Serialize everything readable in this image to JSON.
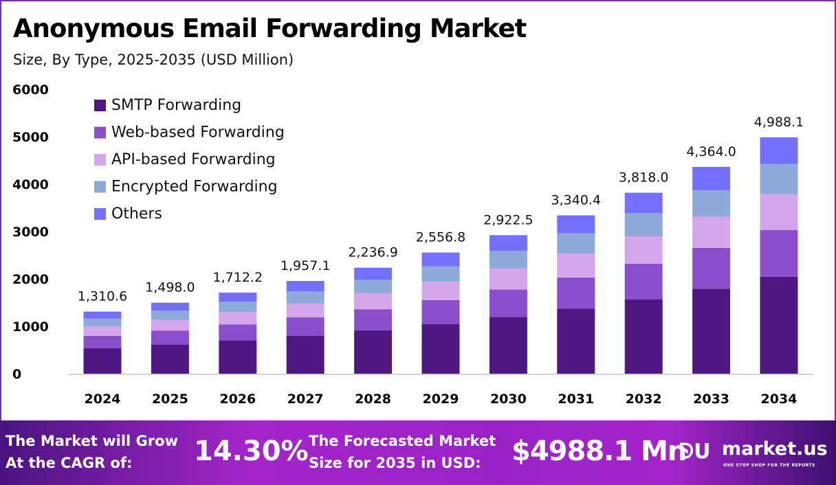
{
  "chart_data": {
    "type": "bar",
    "stacked": true,
    "title": "Anonymous Email Forwarding Market",
    "subtitle": "Size, By Type, 2025-2035 (USD Million)",
    "xlabel": "",
    "ylabel": "",
    "ylim": [
      0,
      6000
    ],
    "yticks": [
      "0",
      "1000",
      "2000",
      "3000",
      "4000",
      "5000",
      "6000"
    ],
    "grid": false,
    "legend_position": "top-left",
    "categories": [
      "2024",
      "2025",
      "2026",
      "2027",
      "2028",
      "2029",
      "2030",
      "2031",
      "2032",
      "2033",
      "2034"
    ],
    "totals": [
      "1,310.6",
      "1,498.0",
      "1,712.2",
      "1,957.1",
      "2,236.9",
      "2,556.8",
      "2,922.5",
      "3,340.4",
      "3,818.0",
      "4,364.0",
      "4,988.1"
    ],
    "series": [
      {
        "name": "SMTP Forwarding",
        "color": "#4f1780",
        "values": [
          537.3,
          614.2,
          702.0,
          802.4,
          917.1,
          1048.3,
          1198.2,
          1369.6,
          1565.4,
          1789.2,
          2045.1
        ]
      },
      {
        "name": "Web-based Forwarding",
        "color": "#8b4fcb",
        "values": [
          259.5,
          296.6,
          339.0,
          387.5,
          442.9,
          506.2,
          578.7,
          661.4,
          756.0,
          864.1,
          987.6
        ]
      },
      {
        "name": "API-based Forwarding",
        "color": "#d4a7ea",
        "values": [
          197.9,
          226.2,
          258.5,
          295.5,
          337.8,
          386.1,
          441.3,
          504.4,
          576.5,
          659.0,
          753.2
        ]
      },
      {
        "name": "Encrypted Forwarding",
        "color": "#8eaadb",
        "values": [
          167.8,
          191.7,
          219.2,
          250.5,
          286.3,
          327.3,
          374.1,
          427.6,
          488.7,
          558.6,
          638.5
        ]
      },
      {
        "name": "Others",
        "color": "#7470fd",
        "values": [
          148.1,
          169.3,
          193.5,
          221.2,
          252.8,
          288.9,
          330.2,
          377.4,
          431.4,
          493.1,
          563.7
        ]
      }
    ]
  },
  "footer": {
    "cagr_label_1": "The Market will Grow",
    "cagr_label_2": "At the CAGR of:",
    "cagr_value": "14.30%",
    "forecast_label_1": "The Forecasted Market",
    "forecast_label_2": "Size for 2035 in USD:",
    "forecast_value": "$4988.1 Mn",
    "logo_text": "market.us",
    "logo_tagline": "ONE STOP SHOP FOR THE REPORTS"
  }
}
